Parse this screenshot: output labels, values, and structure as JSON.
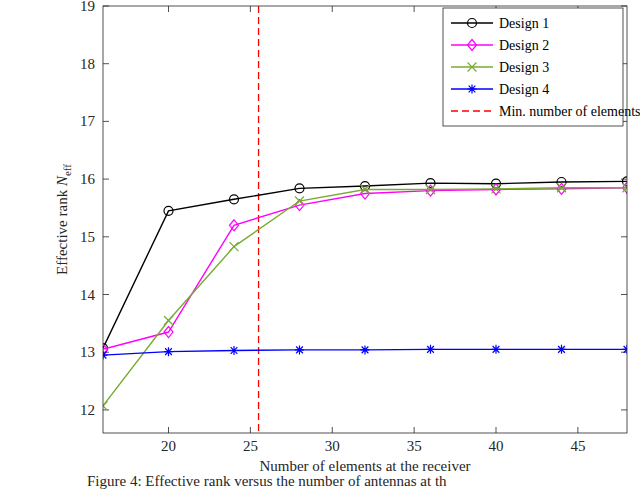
{
  "chart_data": {
    "type": "line",
    "x_label": "Number of elements at the receiver",
    "y_label": "Effective rank Neff",
    "caption": "Figure 4: Effective rank versus the number of antennas at th",
    "x": [
      16,
      20,
      24,
      28,
      32,
      36,
      40,
      44,
      48
    ],
    "series": [
      {
        "name": "Design 1",
        "color": "#000000",
        "marker": "circle",
        "line_style": "solid",
        "values": [
          13.07,
          15.45,
          15.65,
          15.84,
          15.88,
          15.93,
          15.92,
          15.95,
          15.96
        ]
      },
      {
        "name": "Design 2",
        "color": "#ff00ff",
        "marker": "diamond",
        "line_style": "solid",
        "values": [
          13.05,
          13.35,
          15.2,
          15.55,
          15.75,
          15.8,
          15.82,
          15.83,
          15.85
        ]
      },
      {
        "name": "Design 3",
        "color": "#77ac30",
        "marker": "x",
        "line_style": "solid",
        "values": [
          12.07,
          13.55,
          14.83,
          15.62,
          15.82,
          15.82,
          15.83,
          15.85,
          15.85
        ]
      },
      {
        "name": "Design 4",
        "color": "#0000ff",
        "marker": "asterisk",
        "line_style": "solid",
        "values": [
          12.95,
          13.01,
          13.03,
          13.04,
          13.04,
          13.05,
          13.05,
          13.05,
          13.05
        ]
      }
    ],
    "reference_lines": [
      {
        "name": "Min. number of elements",
        "x": 25.5,
        "color": "#ff0000",
        "line_style": "dashed"
      }
    ],
    "xlim": [
      16,
      48
    ],
    "xticks": [
      20,
      25,
      30,
      35,
      40,
      45
    ],
    "ylim": [
      11.6,
      19
    ],
    "yticks": [
      12,
      13,
      14,
      15,
      16,
      17,
      18,
      19
    ],
    "grid": false,
    "legend": "upper right"
  }
}
